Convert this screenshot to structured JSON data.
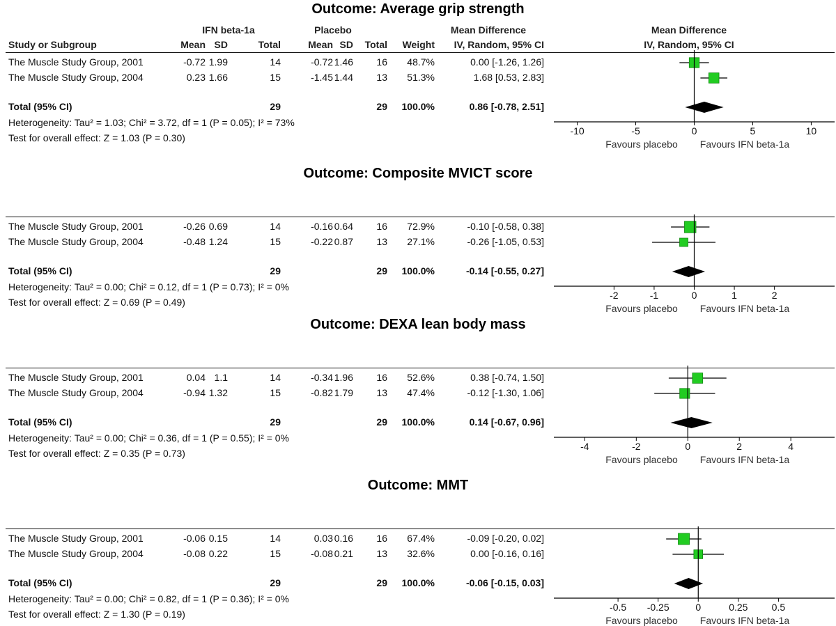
{
  "chart_data": [
    {
      "type": "forest",
      "title": "Outcome: Average grip strength",
      "show_group_headers": true,
      "group_headers": {
        "treatment": "IFN beta-1a",
        "control": "Placebo",
        "effect": "Mean Difference"
      },
      "columns": {
        "study": "Study or Subgroup",
        "mean": "Mean",
        "sd": "SD",
        "total": "Total",
        "weight": "Weight",
        "ci_method": "IV, Random, 95% CI"
      },
      "plot_header": {
        "title": "Mean Difference",
        "method": "IV, Random, 95% CI"
      },
      "studies": [
        {
          "name": "The Muscle Study Group, 2001",
          "t_mean": "-0.72",
          "t_sd": "1.99",
          "t_total": "14",
          "c_mean": "-0.72",
          "c_sd": "1.46",
          "c_total": "16",
          "weight": "48.7%",
          "ci_text": "0.00 [-1.26, 1.26]",
          "md": 0.0,
          "lo": -1.26,
          "hi": 1.26,
          "w": 48.7
        },
        {
          "name": "The Muscle Study Group, 2004",
          "t_mean": "0.23",
          "t_sd": "1.66",
          "t_total": "15",
          "c_mean": "-1.45",
          "c_sd": "1.44",
          "c_total": "13",
          "weight": "51.3%",
          "ci_text": "1.68 [0.53, 2.83]",
          "md": 1.68,
          "lo": 0.53,
          "hi": 2.83,
          "w": 51.3
        }
      ],
      "total": {
        "label": "Total (95% CI)",
        "t_total": "29",
        "c_total": "29",
        "weight": "100.0%",
        "ci_text": "0.86 [-0.78, 2.51]",
        "md": 0.86,
        "lo": -0.78,
        "hi": 2.51
      },
      "heterogeneity": "Heterogeneity: Tau² = 1.03; Chi² = 3.72, df = 1 (P = 0.05); I² = 73%",
      "overall_effect": "Test for overall effect: Z = 1.03 (P = 0.30)",
      "axis": {
        "xlim": [
          -12,
          12
        ],
        "ticks": [
          -10,
          -5,
          0,
          5,
          10
        ],
        "tick_labels": [
          "-10",
          "-5",
          "0",
          "5",
          "10"
        ]
      },
      "favours_left": "Favours placebo",
      "favours_right": "Favours IFN beta-1a"
    },
    {
      "type": "forest",
      "title": "Outcome: Composite MVICT score",
      "show_group_headers": false,
      "studies": [
        {
          "name": "The Muscle Study Group, 2001",
          "t_mean": "-0.26",
          "t_sd": "0.69",
          "t_total": "14",
          "c_mean": "-0.16",
          "c_sd": "0.64",
          "c_total": "16",
          "weight": "72.9%",
          "ci_text": "-0.10 [-0.58, 0.38]",
          "md": -0.1,
          "lo": -0.58,
          "hi": 0.38,
          "w": 72.9
        },
        {
          "name": "The Muscle Study Group, 2004",
          "t_mean": "-0.48",
          "t_sd": "1.24",
          "t_total": "15",
          "c_mean": "-0.22",
          "c_sd": "0.87",
          "c_total": "13",
          "weight": "27.1%",
          "ci_text": "-0.26 [-1.05, 0.53]",
          "md": -0.26,
          "lo": -1.05,
          "hi": 0.53,
          "w": 27.1
        }
      ],
      "total": {
        "label": "Total (95% CI)",
        "t_total": "29",
        "c_total": "29",
        "weight": "100.0%",
        "ci_text": "-0.14 [-0.55, 0.27]",
        "md": -0.14,
        "lo": -0.55,
        "hi": 0.27
      },
      "heterogeneity": "Heterogeneity: Tau² = 0.00; Chi² = 0.12, df = 1 (P = 0.73); I² = 0%",
      "overall_effect": "Test for overall effect: Z = 0.69 (P = 0.49)",
      "axis": {
        "xlim": [
          -3.5,
          3.5
        ],
        "ticks": [
          -2,
          -1,
          0,
          1,
          2
        ],
        "tick_labels": [
          "-2",
          "-1",
          "0",
          "1",
          "2"
        ]
      },
      "favours_left": "Favours placebo",
      "favours_right": "Favours IFN beta-1a"
    },
    {
      "type": "forest",
      "title": "Outcome: DEXA lean body mass",
      "show_group_headers": false,
      "studies": [
        {
          "name": "The Muscle Study Group, 2001",
          "t_mean": "0.04",
          "t_sd": "1.1",
          "t_total": "14",
          "c_mean": "-0.34",
          "c_sd": "1.96",
          "c_total": "16",
          "weight": "52.6%",
          "ci_text": "0.38 [-0.74, 1.50]",
          "md": 0.38,
          "lo": -0.74,
          "hi": 1.5,
          "w": 52.6
        },
        {
          "name": "The Muscle Study Group, 2004",
          "t_mean": "-0.94",
          "t_sd": "1.32",
          "t_total": "15",
          "c_mean": "-0.82",
          "c_sd": "1.79",
          "c_total": "13",
          "weight": "47.4%",
          "ci_text": "-0.12 [-1.30, 1.06]",
          "md": -0.12,
          "lo": -1.3,
          "hi": 1.06,
          "w": 47.4
        }
      ],
      "total": {
        "label": "Total (95% CI)",
        "t_total": "29",
        "c_total": "29",
        "weight": "100.0%",
        "ci_text": "0.14 [-0.67, 0.96]",
        "md": 0.14,
        "lo": -0.67,
        "hi": 0.96
      },
      "heterogeneity": "Heterogeneity: Tau² = 0.00; Chi² = 0.36, df = 1 (P = 0.55); I² = 0%",
      "overall_effect": "Test for overall effect: Z = 0.35 (P = 0.73)",
      "axis": {
        "xlim": [
          -5.2,
          5.7
        ],
        "ticks": [
          -4,
          -2,
          0,
          2,
          4
        ],
        "tick_labels": [
          "-4",
          "-2",
          "0",
          "2",
          "4"
        ]
      },
      "favours_left": "Favours placebo",
      "favours_right": "Favours IFN beta-1a"
    },
    {
      "type": "forest",
      "title": "Outcome: MMT",
      "show_group_headers": false,
      "studies": [
        {
          "name": "The Muscle Study Group, 2001",
          "t_mean": "-0.06",
          "t_sd": "0.15",
          "t_total": "14",
          "c_mean": "0.03",
          "c_sd": "0.16",
          "c_total": "16",
          "weight": "67.4%",
          "ci_text": "-0.09 [-0.20, 0.02]",
          "md": -0.09,
          "lo": -0.2,
          "hi": 0.02,
          "w": 67.4
        },
        {
          "name": "The Muscle Study Group, 2004",
          "t_mean": "-0.08",
          "t_sd": "0.22",
          "t_total": "15",
          "c_mean": "-0.08",
          "c_sd": "0.21",
          "c_total": "13",
          "weight": "32.6%",
          "ci_text": "0.00 [-0.16, 0.16]",
          "md": 0.0,
          "lo": -0.16,
          "hi": 0.16,
          "w": 32.6
        }
      ],
      "total": {
        "label": "Total (95% CI)",
        "t_total": "29",
        "c_total": "29",
        "weight": "100.0%",
        "ci_text": "-0.06 [-0.15, 0.03]",
        "md": -0.06,
        "lo": -0.15,
        "hi": 0.03
      },
      "heterogeneity": "Heterogeneity: Tau² = 0.00; Chi² = 0.82, df = 1 (P = 0.36); I² = 0%",
      "overall_effect": "Test for overall effect: Z = 1.30 (P = 0.19)",
      "axis": {
        "xlim": [
          -0.9,
          0.85
        ],
        "ticks": [
          -0.5,
          -0.25,
          0,
          0.25,
          0.5
        ],
        "tick_labels": [
          "-0.5",
          "-0.25",
          "0",
          "0.25",
          "0.5"
        ]
      },
      "favours_left": "Favours placebo",
      "favours_right": "Favours IFN beta-1a"
    }
  ],
  "colors": {
    "marker": "#22cc22",
    "marker_edge": "#118811",
    "diamond": "#000000",
    "line": "#000000"
  }
}
